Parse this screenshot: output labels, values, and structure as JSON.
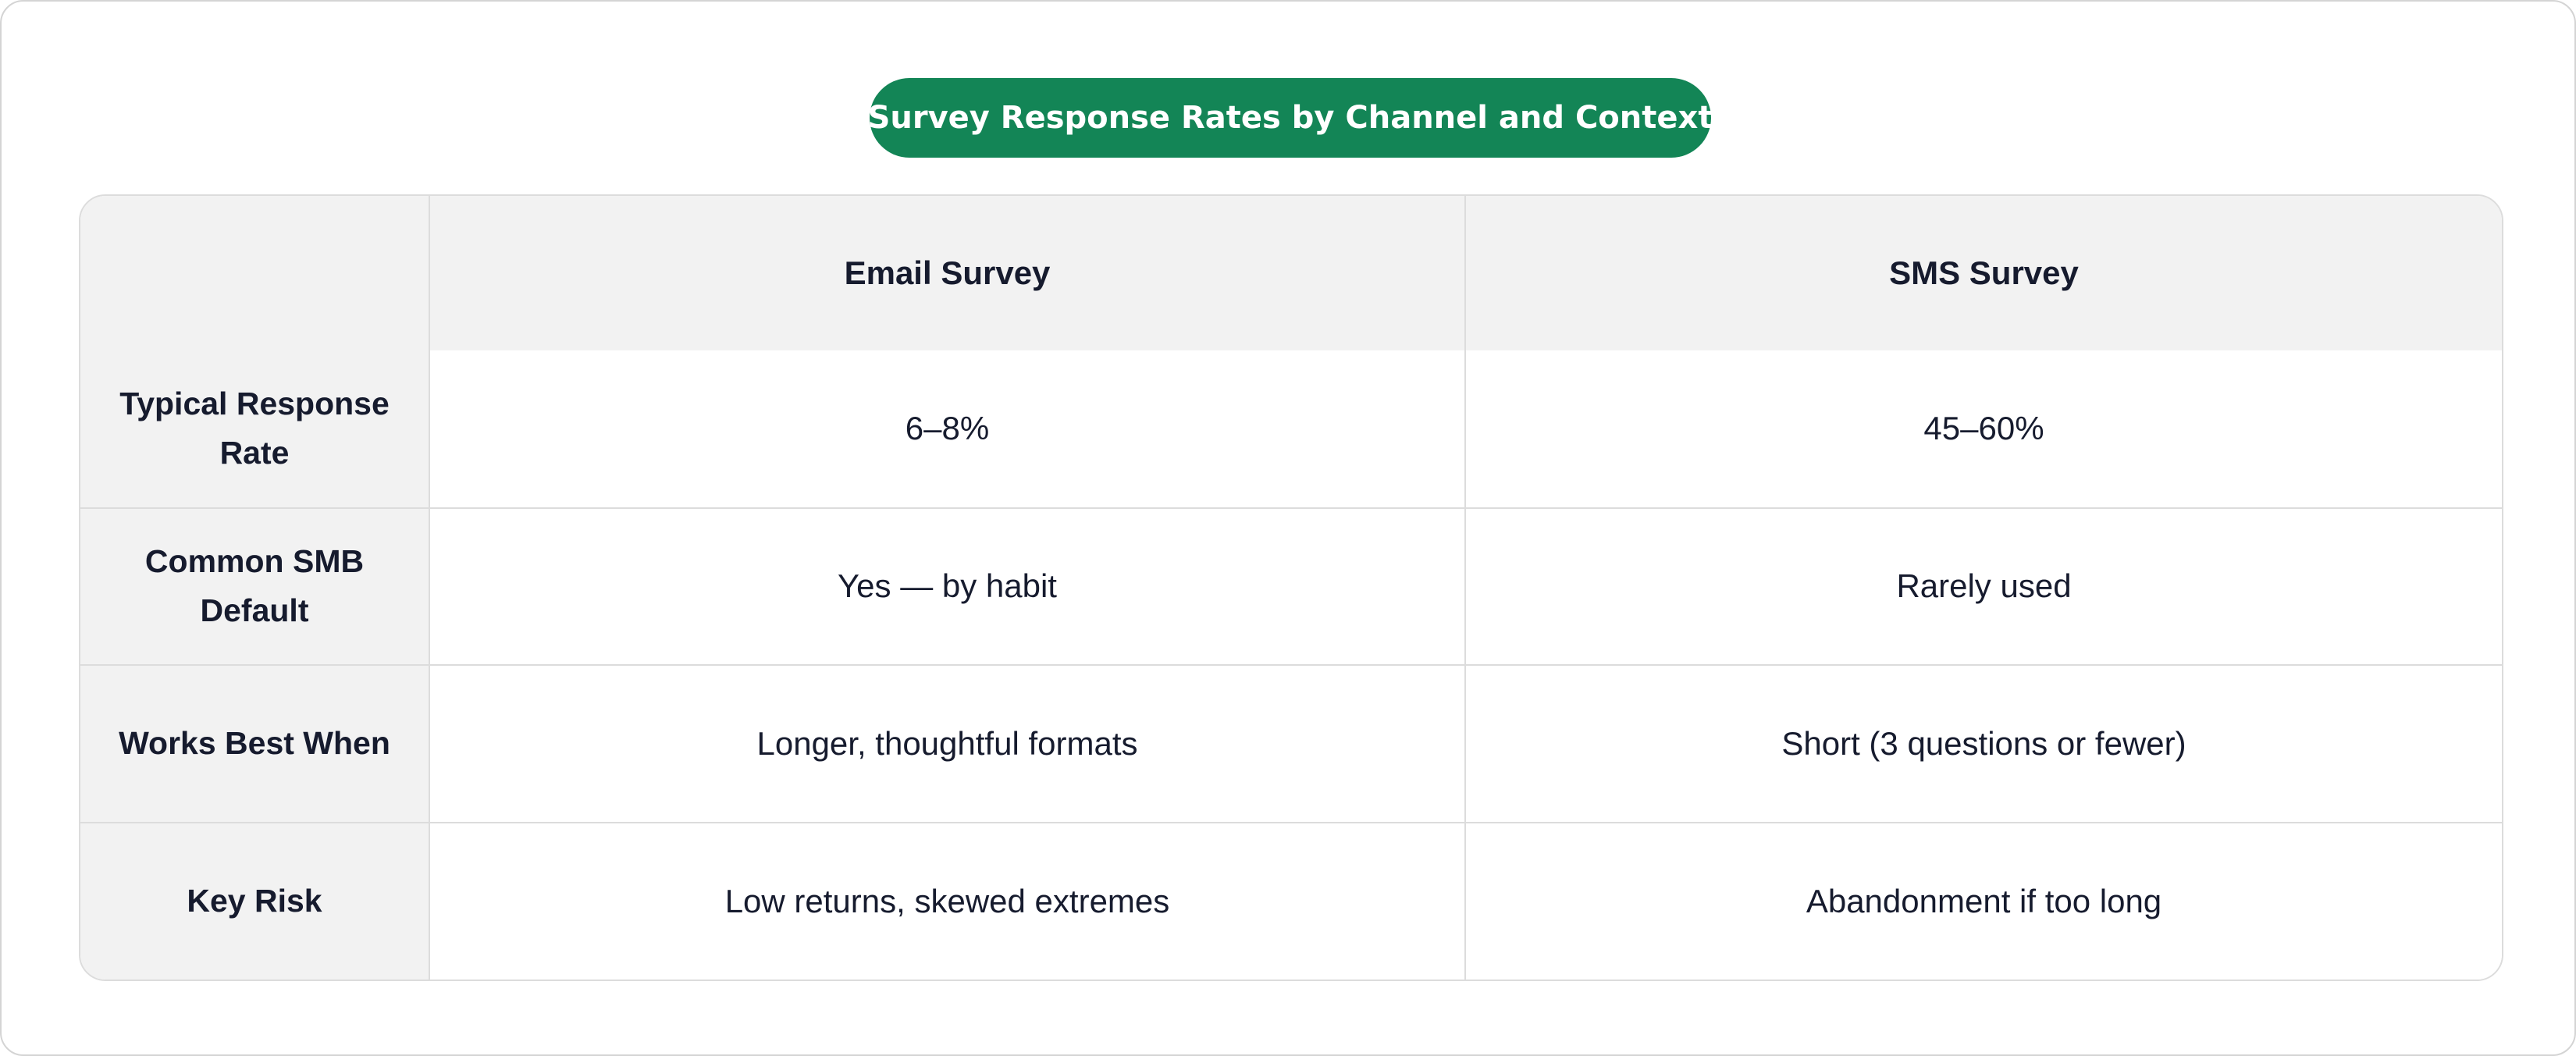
{
  "title": "Survey Response Rates by Channel and Context",
  "table": {
    "columns": [
      "",
      "Email Survey",
      "SMS Survey"
    ],
    "rows": [
      {
        "label": "Typical Response Rate",
        "email": "6–8%",
        "sms": "45–60%"
      },
      {
        "label": "Common SMB Default",
        "email": "Yes — by habit",
        "sms": "Rarely used"
      },
      {
        "label": "Works Best When",
        "email": "Longer, thoughtful formats",
        "sms": "Short (3 questions or fewer)"
      },
      {
        "label": "Key Risk",
        "email": "Low returns, skewed extremes",
        "sms": "Abandonment if too long"
      }
    ]
  },
  "colors": {
    "title_background": "#138556",
    "header_background": "#f2f2f2",
    "border": "#dcdcdc",
    "text": "#161b2e"
  }
}
